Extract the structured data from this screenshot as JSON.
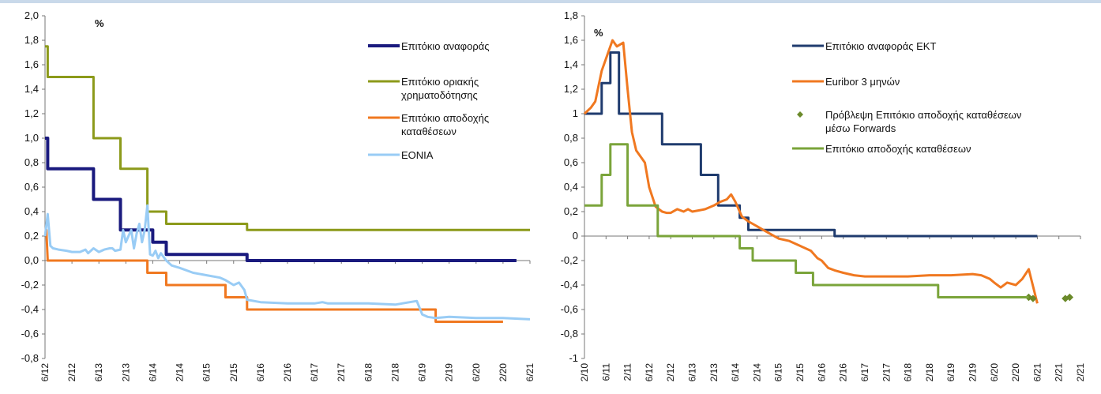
{
  "page_title": "",
  "chart_data": [
    {
      "type": "line",
      "unit_label": "%",
      "ylim": [
        -0.8,
        2.0
      ],
      "y_ticks": [
        "2,0",
        "1,8",
        "1,6",
        "1,4",
        "1,2",
        "1,0",
        "0,8",
        "0,6",
        "0,4",
        "0,2",
        "0,0",
        "-0,2",
        "-0,4",
        "-0,6",
        "-0,8"
      ],
      "x_ticks": [
        "6/12",
        "2/12",
        "6/13",
        "2/13",
        "6/14",
        "2/14",
        "6/15",
        "2/15",
        "6/16",
        "2/16",
        "6/17",
        "2/17",
        "6/18",
        "2/18",
        "6/19",
        "2/19",
        "6/20",
        "2/20",
        "6/21"
      ],
      "legend": [
        "Επιτόκιο αναφοράς",
        "Επιτόκιο οριακής χρηματοδότησης",
        "Επιτόκιο αποδοχής καταθέσεων",
        "EONIA"
      ],
      "series": [
        {
          "name": "Επιτόκιο αναφοράς",
          "color": "#1a1a7e",
          "x": [
            0,
            0.1,
            0.1,
            1.8,
            1.8,
            2.8,
            2.8,
            3.1,
            3.1,
            4.0,
            4.0,
            4.5,
            4.5,
            7.5,
            7.5,
            17.5
          ],
          "y": [
            1.0,
            1.0,
            0.75,
            0.75,
            0.5,
            0.5,
            0.25,
            0.25,
            0.25,
            0.25,
            0.15,
            0.15,
            0.05,
            0.05,
            0.0,
            0.0
          ]
        },
        {
          "name": "Επιτόκιο οριακής χρηματοδότησης",
          "color": "#8c9a1a",
          "x": [
            0,
            0.1,
            0.1,
            1.8,
            1.8,
            2.8,
            2.8,
            3.8,
            3.8,
            4.5,
            4.5,
            7.5,
            7.5,
            18.0
          ],
          "y": [
            1.75,
            1.75,
            1.5,
            1.5,
            1.0,
            1.0,
            0.75,
            0.75,
            0.4,
            0.4,
            0.3,
            0.3,
            0.25,
            0.25
          ]
        },
        {
          "name": "Επιτόκιο αποδοχής καταθέσεων",
          "color": "#f07820",
          "x": [
            0,
            0.05,
            0.1,
            3.8,
            3.8,
            4.5,
            4.5,
            6.7,
            6.7,
            7.5,
            7.5,
            14.5,
            14.5,
            17.0
          ],
          "y": [
            0.25,
            0.25,
            0.0,
            0.0,
            -0.1,
            -0.1,
            -0.2,
            -0.2,
            -0.3,
            -0.3,
            -0.4,
            -0.4,
            -0.5,
            -0.5
          ]
        },
        {
          "name": "EONIA",
          "color": "#99ccf5",
          "x": [
            0,
            0.1,
            0.2,
            0.3,
            0.5,
            0.8,
            1.0,
            1.3,
            1.5,
            1.6,
            1.7,
            1.8,
            2.0,
            2.2,
            2.4,
            2.5,
            2.6,
            2.8,
            2.9,
            3.0,
            3.1,
            3.2,
            3.3,
            3.4,
            3.5,
            3.6,
            3.7,
            3.8,
            3.9,
            4.0,
            4.1,
            4.2,
            4.3,
            4.5,
            4.7,
            5.0,
            5.5,
            6.0,
            6.5,
            6.7,
            7.0,
            7.2,
            7.4,
            7.5,
            8.0,
            9.0,
            10.0,
            10.3,
            10.5,
            11.0,
            12.0,
            13.0,
            13.8,
            14.0,
            14.2,
            14.5,
            15.0,
            16.0,
            17.0,
            18.0
          ],
          "y": [
            0.2,
            0.38,
            0.12,
            0.1,
            0.09,
            0.08,
            0.07,
            0.07,
            0.09,
            0.06,
            0.08,
            0.1,
            0.07,
            0.09,
            0.1,
            0.1,
            0.08,
            0.09,
            0.25,
            0.15,
            0.2,
            0.25,
            0.1,
            0.22,
            0.3,
            0.15,
            0.25,
            0.45,
            0.05,
            0.04,
            0.08,
            0.02,
            0.06,
            0.0,
            -0.04,
            -0.06,
            -0.1,
            -0.12,
            -0.14,
            -0.16,
            -0.2,
            -0.18,
            -0.24,
            -0.32,
            -0.34,
            -0.35,
            -0.35,
            -0.34,
            -0.35,
            -0.35,
            -0.35,
            -0.36,
            -0.33,
            -0.44,
            -0.46,
            -0.47,
            -0.46,
            -0.47,
            -0.47,
            -0.48
          ]
        }
      ]
    },
    {
      "type": "line",
      "unit_label": "%",
      "ylim": [
        -1.0,
        1.8
      ],
      "y_ticks": [
        "1,8",
        "1,6",
        "1,4",
        "1,2",
        "1",
        "0,8",
        "0,6",
        "0,4",
        "0,2",
        "0",
        "-0,2",
        "-0,4",
        "-0,6",
        "-0,8",
        "-1"
      ],
      "x_ticks": [
        "2/10",
        "6/11",
        "2/11",
        "6/12",
        "2/12",
        "6/13",
        "2/13",
        "6/14",
        "2/14",
        "6/15",
        "2/15",
        "6/16",
        "2/16",
        "6/17",
        "2/17",
        "6/18",
        "2/18",
        "6/19",
        "2/19",
        "6/20",
        "2/20",
        "6/21",
        "2/21",
        "2/21"
      ],
      "legend": [
        "Επιτόκιο αναφοράς ΕΚΤ",
        "Euribor 3 μηνών",
        "Πρόβλεψη Επιτόκιο αποδοχής καταθέσεων μέσω Forwards",
        "Επιτόκιο αποδοχής καταθέσεων"
      ],
      "series": [
        {
          "name": "Επιτόκιο αναφοράς ΕΚΤ",
          "color": "#1f3b6e",
          "x": [
            0,
            0.8,
            0.8,
            1.2,
            1.2,
            1.6,
            1.6,
            3.6,
            3.6,
            5.4,
            5.4,
            6.2,
            6.2,
            7.2,
            7.2,
            7.6,
            7.6,
            8.8,
            8.8,
            11.6,
            11.6,
            12.0,
            12.0,
            21.0
          ],
          "y": [
            1.0,
            1.0,
            1.25,
            1.25,
            1.5,
            1.5,
            1.0,
            1.0,
            0.75,
            0.75,
            0.5,
            0.5,
            0.25,
            0.25,
            0.15,
            0.15,
            0.05,
            0.05,
            0.05,
            0.05,
            0.0,
            0.0,
            0.0,
            0.0
          ]
        },
        {
          "name": "Euribor 3 μηνών",
          "color": "#f07820",
          "x": [
            0,
            0.3,
            0.5,
            0.8,
            1.0,
            1.3,
            1.5,
            1.8,
            2.0,
            2.2,
            2.4,
            2.8,
            3.0,
            3.3,
            3.6,
            3.8,
            4.0,
            4.3,
            4.6,
            4.8,
            5.0,
            5.3,
            5.6,
            6.0,
            6.3,
            6.6,
            6.8,
            7.0,
            7.3,
            7.6,
            7.8,
            8.0,
            8.3,
            8.6,
            9.0,
            9.5,
            10.0,
            10.5,
            10.8,
            11.0,
            11.3,
            11.6,
            12.0,
            12.5,
            13.0,
            14.0,
            15.0,
            16.0,
            17.0,
            18.0,
            18.4,
            18.8,
            19.0,
            19.3,
            19.6,
            20.0,
            20.3,
            20.6,
            21.0
          ],
          "y": [
            1.0,
            1.05,
            1.1,
            1.35,
            1.45,
            1.6,
            1.55,
            1.58,
            1.2,
            0.85,
            0.7,
            0.6,
            0.4,
            0.24,
            0.2,
            0.19,
            0.19,
            0.22,
            0.2,
            0.22,
            0.2,
            0.21,
            0.22,
            0.25,
            0.28,
            0.3,
            0.34,
            0.28,
            0.16,
            0.12,
            0.1,
            0.08,
            0.05,
            0.02,
            -0.02,
            -0.04,
            -0.08,
            -0.12,
            -0.18,
            -0.2,
            -0.26,
            -0.28,
            -0.3,
            -0.32,
            -0.33,
            -0.33,
            -0.33,
            -0.32,
            -0.32,
            -0.31,
            -0.32,
            -0.35,
            -0.38,
            -0.42,
            -0.38,
            -0.4,
            -0.35,
            -0.27,
            -0.55
          ]
        },
        {
          "name": "Πρόβλεψη Επιτόκιο αποδοχής καταθέσεων μέσω Forwards",
          "color": "#6b8a2a",
          "marker": "diamond",
          "x": [
            20.6,
            20.8,
            22.3,
            22.5
          ],
          "y": [
            -0.5,
            -0.51,
            -0.51,
            -0.5
          ]
        },
        {
          "name": "Επιτόκιο αποδοχής καταθέσεων",
          "color": "#7aa43a",
          "x": [
            0,
            0.8,
            0.8,
            1.2,
            1.2,
            1.6,
            1.6,
            2.0,
            2.0,
            2.7,
            2.7,
            3.4,
            3.4,
            3.6,
            3.6,
            6.4,
            6.4,
            7.2,
            7.2,
            7.8,
            7.8,
            9.8,
            9.8,
            10.6,
            10.6,
            11.4,
            11.4,
            16.4,
            16.4,
            17.4,
            17.4,
            20.6
          ],
          "y": [
            0.25,
            0.25,
            0.5,
            0.5,
            0.75,
            0.75,
            0.75,
            0.75,
            0.25,
            0.25,
            0.25,
            0.25,
            0.0,
            0.0,
            0.0,
            0.0,
            0.0,
            0.0,
            -0.1,
            -0.1,
            -0.2,
            -0.2,
            -0.3,
            -0.3,
            -0.4,
            -0.4,
            -0.4,
            -0.4,
            -0.5,
            -0.5,
            -0.5,
            -0.5
          ]
        }
      ]
    }
  ]
}
